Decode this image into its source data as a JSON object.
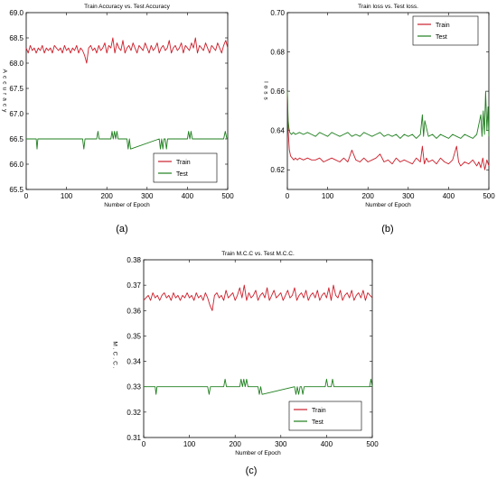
{
  "colors": {
    "train": "#cc1f2b",
    "test": "#1f7f1f",
    "axis": "#000000"
  },
  "chart_data": [
    {
      "panel_label": "(a)",
      "type": "line",
      "title": "Train Accuracy vs. Test Accuracy",
      "xlabel": "Number of Epoch",
      "ylabel": "Accuracy",
      "xlim": [
        0,
        500
      ],
      "ylim": [
        65.5,
        69.0
      ],
      "xticks": [
        0,
        100,
        200,
        300,
        400,
        500
      ],
      "yticks": [
        65.5,
        66.0,
        66.5,
        67.0,
        67.5,
        68.0,
        68.5,
        69.0
      ],
      "ytick_labels": [
        "65.5",
        "66.0",
        "66.5",
        "67.0",
        "67.5",
        "68.0",
        "68.5",
        "69.0"
      ],
      "grid": false,
      "legend_position": "lower-right",
      "series": [
        {
          "name": "Train",
          "color_key": "train",
          "x": [
            0,
            5,
            10,
            15,
            20,
            25,
            30,
            35,
            40,
            45,
            50,
            55,
            60,
            65,
            70,
            75,
            80,
            85,
            90,
            95,
            100,
            105,
            110,
            115,
            120,
            125,
            130,
            135,
            140,
            145,
            150,
            155,
            160,
            165,
            170,
            175,
            180,
            185,
            190,
            195,
            200,
            205,
            210,
            215,
            220,
            225,
            230,
            235,
            240,
            245,
            250,
            255,
            260,
            265,
            270,
            275,
            280,
            285,
            290,
            295,
            300,
            305,
            310,
            315,
            320,
            325,
            330,
            335,
            340,
            345,
            350,
            355,
            360,
            365,
            370,
            375,
            380,
            385,
            390,
            395,
            400,
            405,
            410,
            415,
            420,
            425,
            430,
            435,
            440,
            445,
            450,
            455,
            460,
            465,
            470,
            475,
            480,
            485,
            490,
            495,
            500
          ],
          "y": [
            68.3,
            68.2,
            68.35,
            68.25,
            68.3,
            68.2,
            68.3,
            68.25,
            68.35,
            68.2,
            68.3,
            68.25,
            68.3,
            68.2,
            68.35,
            68.3,
            68.25,
            68.3,
            68.2,
            68.35,
            68.25,
            68.3,
            68.2,
            68.3,
            68.25,
            68.35,
            68.2,
            68.3,
            68.25,
            68.15,
            68.0,
            68.3,
            68.35,
            68.25,
            68.3,
            68.2,
            68.35,
            68.25,
            68.3,
            68.4,
            68.2,
            68.35,
            68.3,
            68.5,
            68.2,
            68.4,
            68.3,
            68.25,
            68.45,
            68.2,
            68.3,
            68.35,
            68.25,
            68.4,
            68.3,
            68.2,
            68.35,
            68.3,
            68.25,
            68.4,
            68.3,
            68.2,
            68.35,
            68.25,
            68.3,
            68.4,
            68.2,
            68.3,
            68.35,
            68.25,
            68.3,
            68.45,
            68.2,
            68.3,
            68.35,
            68.25,
            68.3,
            68.4,
            68.2,
            68.35,
            68.3,
            68.25,
            68.4,
            68.3,
            68.5,
            68.2,
            68.35,
            68.3,
            68.25,
            68.4,
            68.3,
            68.2,
            68.35,
            68.3,
            68.25,
            68.4,
            68.3,
            68.2,
            68.35,
            68.45,
            68.3
          ]
        },
        {
          "name": "Test",
          "color_key": "test",
          "x": [
            0,
            25,
            27,
            29,
            100,
            140,
            143,
            146,
            175,
            178,
            181,
            210,
            213,
            216,
            219,
            222,
            225,
            228,
            250,
            253,
            256,
            259,
            330,
            333,
            336,
            339,
            342,
            345,
            348,
            351,
            400,
            403,
            406,
            409,
            412,
            490,
            494,
            498,
            500
          ],
          "y": [
            66.5,
            66.5,
            66.3,
            66.5,
            66.5,
            66.5,
            66.3,
            66.5,
            66.5,
            66.65,
            66.5,
            66.5,
            66.65,
            66.5,
            66.65,
            66.5,
            66.65,
            66.5,
            66.5,
            66.3,
            66.5,
            66.3,
            66.5,
            66.3,
            66.5,
            66.3,
            66.5,
            66.5,
            66.3,
            66.5,
            66.5,
            66.65,
            66.5,
            66.65,
            66.5,
            66.5,
            66.65,
            66.5,
            66.5
          ]
        }
      ]
    },
    {
      "panel_label": "(b)",
      "type": "line",
      "title": "Train loss vs. Test loss.",
      "xlabel": "Number of  Epoch",
      "ylabel": "loss",
      "xlim": [
        0,
        500
      ],
      "ylim": [
        0.61,
        0.7
      ],
      "xticks": [
        0,
        100,
        200,
        300,
        400,
        500
      ],
      "yticks": [
        0.62,
        0.64,
        0.66,
        0.68,
        0.7
      ],
      "ytick_labels": [
        "0.62",
        "0.64",
        "0.66",
        "0.68",
        "0.70"
      ],
      "grid": false,
      "legend_position": "upper-right",
      "series": [
        {
          "name": "Train",
          "color_key": "train",
          "x": [
            0,
            2,
            5,
            8,
            12,
            16,
            20,
            25,
            30,
            40,
            50,
            60,
            70,
            80,
            90,
            100,
            110,
            120,
            130,
            140,
            150,
            160,
            170,
            180,
            190,
            200,
            210,
            220,
            230,
            240,
            250,
            260,
            270,
            280,
            290,
            300,
            310,
            320,
            330,
            335,
            340,
            345,
            350,
            360,
            370,
            380,
            390,
            400,
            410,
            420,
            425,
            430,
            440,
            450,
            460,
            470,
            475,
            480,
            485,
            490,
            495,
            500
          ],
          "y": [
            0.66,
            0.64,
            0.63,
            0.627,
            0.626,
            0.625,
            0.626,
            0.625,
            0.626,
            0.625,
            0.626,
            0.625,
            0.625,
            0.626,
            0.624,
            0.625,
            0.626,
            0.625,
            0.624,
            0.626,
            0.624,
            0.63,
            0.625,
            0.624,
            0.626,
            0.624,
            0.625,
            0.626,
            0.628,
            0.624,
            0.625,
            0.623,
            0.626,
            0.624,
            0.625,
            0.624,
            0.623,
            0.626,
            0.624,
            0.632,
            0.623,
            0.626,
            0.624,
            0.625,
            0.623,
            0.626,
            0.624,
            0.623,
            0.625,
            0.632,
            0.624,
            0.622,
            0.624,
            0.623,
            0.625,
            0.622,
            0.624,
            0.621,
            0.626,
            0.62,
            0.625,
            0.622
          ]
        },
        {
          "name": "Test",
          "color_key": "test",
          "x": [
            0,
            2,
            4,
            6,
            10,
            15,
            20,
            30,
            40,
            50,
            60,
            70,
            80,
            90,
            100,
            110,
            120,
            130,
            140,
            150,
            160,
            170,
            180,
            190,
            200,
            210,
            220,
            230,
            240,
            250,
            260,
            270,
            280,
            290,
            300,
            310,
            320,
            330,
            335,
            338,
            341,
            350,
            360,
            370,
            380,
            390,
            400,
            410,
            420,
            430,
            440,
            450,
            460,
            470,
            480,
            483,
            486,
            489,
            492,
            495,
            498,
            500
          ],
          "y": [
            0.66,
            0.645,
            0.641,
            0.639,
            0.638,
            0.639,
            0.638,
            0.639,
            0.638,
            0.639,
            0.638,
            0.637,
            0.639,
            0.638,
            0.637,
            0.639,
            0.638,
            0.637,
            0.638,
            0.639,
            0.637,
            0.638,
            0.637,
            0.639,
            0.638,
            0.637,
            0.638,
            0.639,
            0.637,
            0.638,
            0.637,
            0.638,
            0.636,
            0.638,
            0.637,
            0.638,
            0.636,
            0.638,
            0.648,
            0.637,
            0.645,
            0.637,
            0.638,
            0.636,
            0.638,
            0.637,
            0.636,
            0.638,
            0.637,
            0.636,
            0.638,
            0.637,
            0.636,
            0.638,
            0.648,
            0.637,
            0.65,
            0.638,
            0.66,
            0.64,
            0.652,
            0.637
          ]
        }
      ]
    },
    {
      "panel_label": "(c)",
      "type": "line",
      "title": "Train M.C.C vs. Test M.C.C.",
      "xlabel": "Number of Epoch",
      "ylabel": "M.C.C.",
      "xlim": [
        0,
        500
      ],
      "ylim": [
        0.31,
        0.38
      ],
      "xticks": [
        0,
        100,
        200,
        300,
        400,
        500
      ],
      "yticks": [
        0.31,
        0.32,
        0.33,
        0.34,
        0.35,
        0.36,
        0.37,
        0.38
      ],
      "ytick_labels": [
        "0.31",
        "0.32",
        "0.33",
        "0.34",
        "0.35",
        "0.36",
        "0.37",
        "0.38"
      ],
      "grid": false,
      "legend_position": "lower-right",
      "series": [
        {
          "name": "Train",
          "color_key": "train",
          "x": [
            0,
            5,
            10,
            15,
            20,
            25,
            30,
            35,
            40,
            45,
            50,
            55,
            60,
            65,
            70,
            75,
            80,
            85,
            90,
            95,
            100,
            105,
            110,
            115,
            120,
            125,
            130,
            135,
            140,
            145,
            150,
            155,
            160,
            165,
            170,
            175,
            180,
            185,
            190,
            195,
            200,
            205,
            210,
            215,
            220,
            225,
            230,
            235,
            240,
            245,
            250,
            255,
            260,
            265,
            270,
            275,
            280,
            285,
            290,
            295,
            300,
            305,
            310,
            315,
            320,
            325,
            330,
            335,
            340,
            345,
            350,
            355,
            360,
            365,
            370,
            375,
            380,
            385,
            390,
            395,
            400,
            405,
            410,
            415,
            420,
            425,
            430,
            435,
            440,
            445,
            450,
            455,
            460,
            465,
            470,
            475,
            480,
            485,
            490,
            495,
            500
          ],
          "y": [
            0.364,
            0.365,
            0.366,
            0.364,
            0.367,
            0.365,
            0.366,
            0.364,
            0.366,
            0.367,
            0.365,
            0.366,
            0.364,
            0.367,
            0.365,
            0.366,
            0.364,
            0.366,
            0.365,
            0.367,
            0.365,
            0.366,
            0.364,
            0.367,
            0.365,
            0.366,
            0.364,
            0.367,
            0.365,
            0.362,
            0.36,
            0.366,
            0.367,
            0.365,
            0.366,
            0.364,
            0.368,
            0.365,
            0.366,
            0.367,
            0.364,
            0.366,
            0.369,
            0.365,
            0.37,
            0.364,
            0.367,
            0.365,
            0.366,
            0.368,
            0.364,
            0.366,
            0.367,
            0.365,
            0.369,
            0.364,
            0.366,
            0.368,
            0.365,
            0.366,
            0.367,
            0.364,
            0.366,
            0.368,
            0.365,
            0.366,
            0.369,
            0.364,
            0.366,
            0.367,
            0.365,
            0.368,
            0.364,
            0.366,
            0.367,
            0.365,
            0.368,
            0.364,
            0.366,
            0.367,
            0.365,
            0.369,
            0.364,
            0.37,
            0.366,
            0.365,
            0.368,
            0.364,
            0.366,
            0.367,
            0.365,
            0.368,
            0.364,
            0.366,
            0.367,
            0.365,
            0.368,
            0.364,
            0.367,
            0.366,
            0.365
          ]
        },
        {
          "name": "Test",
          "color_key": "test",
          "x": [
            0,
            25,
            27,
            29,
            140,
            143,
            146,
            175,
            178,
            181,
            210,
            213,
            216,
            219,
            222,
            225,
            228,
            250,
            253,
            256,
            259,
            330,
            333,
            336,
            339,
            342,
            345,
            348,
            351,
            397,
            400,
            403,
            410,
            413,
            416,
            494,
            497,
            500
          ],
          "y": [
            0.33,
            0.33,
            0.327,
            0.33,
            0.33,
            0.327,
            0.33,
            0.33,
            0.333,
            0.33,
            0.33,
            0.333,
            0.33,
            0.333,
            0.33,
            0.333,
            0.33,
            0.33,
            0.327,
            0.33,
            0.327,
            0.33,
            0.327,
            0.33,
            0.327,
            0.33,
            0.33,
            0.327,
            0.33,
            0.33,
            0.333,
            0.33,
            0.33,
            0.333,
            0.33,
            0.33,
            0.333,
            0.33
          ]
        }
      ]
    }
  ]
}
